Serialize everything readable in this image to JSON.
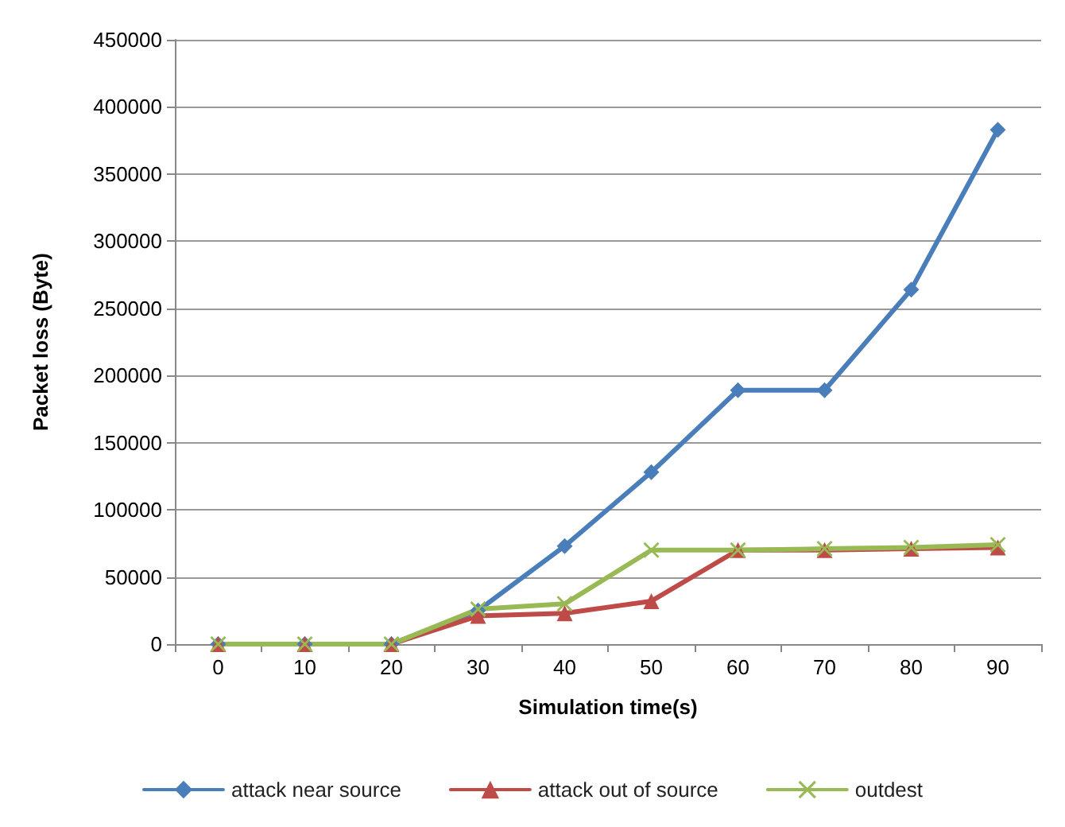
{
  "chart_data": {
    "type": "line",
    "xlabel": "Simulation time(s)",
    "ylabel": "Packet loss (Byte)",
    "categories": [
      "0",
      "10",
      "20",
      "30",
      "40",
      "50",
      "60",
      "70",
      "80",
      "90"
    ],
    "series": [
      {
        "name": "attack near source",
        "color": "#4a7ebb",
        "marker": "diamond",
        "values": [
          0,
          0,
          0,
          25000,
          73000,
          128000,
          189000,
          189000,
          264000,
          383000
        ]
      },
      {
        "name": "attack out of source",
        "color": "#be4b48",
        "marker": "triangle",
        "values": [
          0,
          0,
          0,
          21000,
          23000,
          32000,
          70000,
          70000,
          71000,
          72000
        ]
      },
      {
        "name": "outdest",
        "color": "#98b954",
        "marker": "cross",
        "values": [
          0,
          0,
          0,
          26000,
          30000,
          70000,
          70000,
          71000,
          72000,
          74000
        ]
      }
    ],
    "ylim": [
      0,
      450000
    ],
    "yticks": [
      0,
      50000,
      100000,
      150000,
      200000,
      250000,
      300000,
      350000,
      400000,
      450000
    ],
    "grid": "y",
    "legend": "bottom"
  }
}
